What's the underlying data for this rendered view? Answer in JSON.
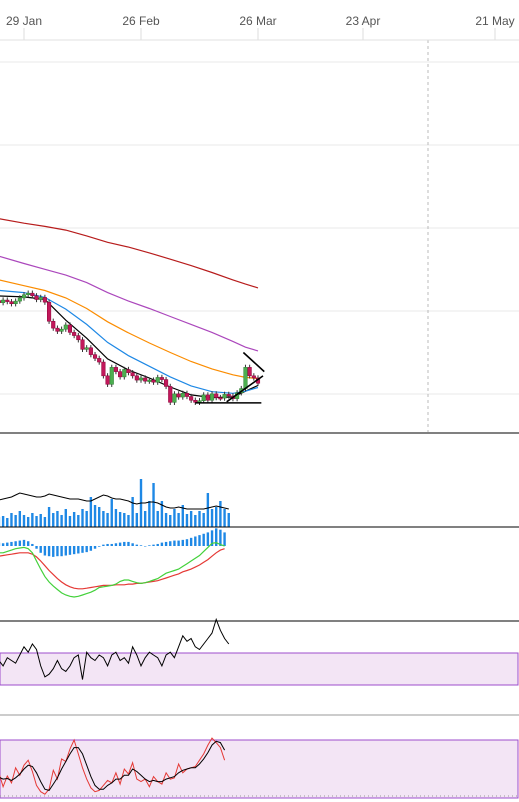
{
  "colors": {
    "up": "#4caf50",
    "down": "#c2185b",
    "ma_short": "#000000",
    "ma_blue": "#1e88e5",
    "ma_orange": "#fb8c00",
    "ma_purple": "#ab47bc",
    "ma_dark_red": "#b71c1c",
    "volume": "#1e88e5",
    "macd_signal": "#e53935",
    "macd_line": "#43d13b",
    "band_fill": "#f3e5f5",
    "band_border": "#9c4dcc",
    "grid": "#e8e8e8"
  },
  "chart_data": {
    "type": "candlestick",
    "title": "",
    "x_axis": {
      "tick_labels": [
        "29 Jan",
        "26 Feb",
        "26 Mar",
        "23 Apr",
        "21 May"
      ],
      "tick_days": [
        0,
        28,
        56,
        84,
        112
      ]
    },
    "panels": [
      "price",
      "volume",
      "macd",
      "rsi",
      "stochastic"
    ],
    "price": {
      "candles": [
        {
          "day": -7,
          "o": 62.0,
          "c": 61.4
        },
        {
          "day": -6,
          "o": 61.4,
          "c": 61.0
        },
        {
          "day": -5,
          "o": 61.0,
          "c": 61.5
        },
        {
          "day": -4,
          "o": 61.5,
          "c": 61.2
        },
        {
          "day": -3,
          "o": 61.2,
          "c": 60.8
        },
        {
          "day": -2,
          "o": 60.8,
          "c": 61.3
        },
        {
          "day": -1,
          "o": 61.3,
          "c": 61.9
        },
        {
          "day": 0,
          "o": 61.9,
          "c": 62.5
        },
        {
          "day": 1,
          "o": 62.5,
          "c": 62.8
        },
        {
          "day": 2,
          "o": 62.8,
          "c": 62.3
        },
        {
          "day": 3,
          "o": 62.3,
          "c": 61.6
        },
        {
          "day": 4,
          "o": 61.6,
          "c": 62.0
        },
        {
          "day": 5,
          "o": 62.0,
          "c": 61.1
        },
        {
          "day": 6,
          "o": 61.1,
          "c": 57.5
        },
        {
          "day": 7,
          "o": 57.5,
          "c": 56.2
        },
        {
          "day": 8,
          "o": 56.2,
          "c": 55.6
        },
        {
          "day": 9,
          "o": 55.6,
          "c": 56.0
        },
        {
          "day": 10,
          "o": 56.0,
          "c": 56.8
        },
        {
          "day": 11,
          "o": 56.8,
          "c": 55.4
        },
        {
          "day": 12,
          "o": 55.4,
          "c": 54.8
        },
        {
          "day": 13,
          "o": 54.8,
          "c": 54.0
        },
        {
          "day": 14,
          "o": 54.0,
          "c": 52.2
        },
        {
          "day": 15,
          "o": 52.2,
          "c": 52.5
        },
        {
          "day": 16,
          "o": 52.5,
          "c": 51.2
        },
        {
          "day": 17,
          "o": 51.2,
          "c": 50.5
        },
        {
          "day": 18,
          "o": 50.5,
          "c": 49.8
        },
        {
          "day": 19,
          "o": 49.8,
          "c": 47.2
        },
        {
          "day": 20,
          "o": 47.2,
          "c": 45.6
        },
        {
          "day": 21,
          "o": 45.6,
          "c": 48.8
        },
        {
          "day": 22,
          "o": 48.8,
          "c": 48.0
        },
        {
          "day": 23,
          "o": 48.0,
          "c": 47.0
        },
        {
          "day": 24,
          "o": 47.0,
          "c": 48.4
        },
        {
          "day": 25,
          "o": 48.4,
          "c": 47.8
        },
        {
          "day": 26,
          "o": 47.8,
          "c": 47.2
        },
        {
          "day": 27,
          "o": 47.2,
          "c": 46.4
        },
        {
          "day": 28,
          "o": 46.4,
          "c": 46.8
        },
        {
          "day": 29,
          "o": 46.8,
          "c": 46.2
        },
        {
          "day": 30,
          "o": 46.2,
          "c": 46.4
        },
        {
          "day": 31,
          "o": 46.4,
          "c": 46.0
        },
        {
          "day": 32,
          "o": 46.0,
          "c": 46.9
        },
        {
          "day": 33,
          "o": 46.9,
          "c": 46.5
        },
        {
          "day": 34,
          "o": 46.5,
          "c": 45.2
        },
        {
          "day": 35,
          "o": 45.2,
          "c": 42.2
        },
        {
          "day": 36,
          "o": 42.2,
          "c": 43.8
        },
        {
          "day": 37,
          "o": 43.8,
          "c": 43.2
        },
        {
          "day": 38,
          "o": 43.2,
          "c": 43.9
        },
        {
          "day": 39,
          "o": 43.9,
          "c": 43.3
        },
        {
          "day": 40,
          "o": 43.3,
          "c": 42.6
        },
        {
          "day": 41,
          "o": 42.6,
          "c": 42.2
        },
        {
          "day": 42,
          "o": 42.2,
          "c": 42.5
        },
        {
          "day": 43,
          "o": 42.5,
          "c": 43.6
        },
        {
          "day": 44,
          "o": 43.6,
          "c": 42.6
        },
        {
          "day": 45,
          "o": 42.6,
          "c": 43.8
        },
        {
          "day": 46,
          "o": 43.8,
          "c": 43.1
        },
        {
          "day": 47,
          "o": 43.1,
          "c": 43.0
        },
        {
          "day": 48,
          "o": 43.0,
          "c": 43.7
        },
        {
          "day": 49,
          "o": 43.7,
          "c": 43.4
        },
        {
          "day": 50,
          "o": 43.4,
          "c": 42.9
        },
        {
          "day": 51,
          "o": 42.9,
          "c": 44.0
        },
        {
          "day": 52,
          "o": 44.0,
          "c": 44.8
        },
        {
          "day": 53,
          "o": 44.8,
          "c": 48.8
        },
        {
          "day": 54,
          "o": 48.8,
          "c": 47.2
        },
        {
          "day": 55,
          "o": 47.2,
          "c": 46.8
        },
        {
          "day": 56,
          "o": 46.8,
          "c": 45.8
        }
      ],
      "moving_averages": [
        {
          "color_key": "ma_short",
          "values": [
            [
              -7,
              62.3
            ],
            [
              0,
              62.1
            ],
            [
              5,
              61.6
            ],
            [
              10,
              57.7
            ],
            [
              15,
              54.3
            ],
            [
              20,
              50.4
            ],
            [
              25,
              48.3
            ],
            [
              30,
              46.8
            ],
            [
              35,
              45.1
            ],
            [
              40,
              43.6
            ],
            [
              45,
              43.1
            ],
            [
              50,
              43.2
            ],
            [
              53,
              44.3
            ],
            [
              56,
              45.4
            ]
          ]
        },
        {
          "color_key": "ma_blue",
          "values": [
            [
              -7,
              63.4
            ],
            [
              0,
              62.9
            ],
            [
              5,
              62.0
            ],
            [
              10,
              59.8
            ],
            [
              15,
              56.9
            ],
            [
              20,
              53.5
            ],
            [
              25,
              51.0
            ],
            [
              30,
              49.0
            ],
            [
              35,
              47.0
            ],
            [
              40,
              45.3
            ],
            [
              45,
              44.2
            ],
            [
              50,
              43.9
            ],
            [
              53,
              44.3
            ],
            [
              56,
              45.0
            ]
          ]
        },
        {
          "color_key": "ma_orange",
          "values": [
            [
              -7,
              65.5
            ],
            [
              0,
              64.2
            ],
            [
              5,
              63.3
            ],
            [
              10,
              61.9
            ],
            [
              15,
              59.9
            ],
            [
              20,
              57.4
            ],
            [
              25,
              55.3
            ],
            [
              30,
              53.4
            ],
            [
              35,
              51.6
            ],
            [
              40,
              49.9
            ],
            [
              45,
              48.5
            ],
            [
              50,
              47.4
            ],
            [
              53,
              46.9
            ],
            [
              56,
              46.7
            ]
          ]
        },
        {
          "color_key": "ma_purple",
          "values": [
            [
              -7,
              70.0
            ],
            [
              0,
              68.4
            ],
            [
              5,
              67.3
            ],
            [
              10,
              66.2
            ],
            [
              15,
              64.8
            ],
            [
              20,
              62.9
            ],
            [
              25,
              61.3
            ],
            [
              30,
              59.9
            ],
            [
              35,
              58.4
            ],
            [
              40,
              56.9
            ],
            [
              45,
              55.4
            ],
            [
              50,
              53.7
            ],
            [
              53,
              52.6
            ],
            [
              56,
              51.9
            ]
          ]
        },
        {
          "color_key": "ma_dark_red",
          "values": [
            [
              -7,
              77.0
            ],
            [
              0,
              76.0
            ],
            [
              5,
              75.4
            ],
            [
              10,
              74.7
            ],
            [
              15,
              73.6
            ],
            [
              20,
              72.4
            ],
            [
              25,
              71.5
            ],
            [
              30,
              70.4
            ],
            [
              35,
              69.2
            ],
            [
              40,
              68.0
            ],
            [
              45,
              66.7
            ],
            [
              50,
              65.3
            ],
            [
              53,
              64.5
            ],
            [
              56,
              63.8
            ]
          ]
        }
      ],
      "trendlines": [
        {
          "from": [
            41,
            42.1
          ],
          "to": [
            56.8,
            42.1
          ]
        },
        {
          "from": [
            48.5,
            42.3
          ],
          "to": [
            57.2,
            47.2
          ]
        },
        {
          "from": [
            52.5,
            51.6
          ],
          "to": [
            57.5,
            48.0
          ]
        }
      ]
    },
    "volume": {
      "values": [
        12,
        10,
        11,
        9,
        14,
        12,
        16,
        12,
        10,
        14,
        11,
        13,
        10,
        20,
        14,
        16,
        12,
        18,
        11,
        15,
        12,
        18,
        16,
        30,
        22,
        20,
        16,
        14,
        28,
        18,
        15,
        14,
        12,
        30,
        14,
        48,
        16,
        26,
        44,
        16,
        26,
        14,
        12,
        18,
        14,
        22,
        13,
        16,
        12,
        16,
        14,
        34,
        18,
        20,
        26,
        18,
        14
      ],
      "average_line": [
        26,
        27,
        28,
        29,
        30,
        32,
        34,
        33,
        32,
        31,
        30,
        30,
        31,
        33,
        32,
        31,
        30,
        29,
        28,
        28,
        28,
        27,
        26,
        26,
        28,
        30,
        32,
        31,
        29,
        28,
        28,
        27,
        26,
        24,
        23,
        24,
        24,
        25,
        25,
        24,
        22,
        20,
        19,
        19,
        20,
        19,
        18,
        18,
        18,
        18,
        18,
        19,
        20,
        21,
        20,
        19,
        18
      ]
    },
    "macd": {
      "histogram": [
        0.6,
        0.5,
        0.4,
        0.5,
        0.6,
        0.7,
        0.8,
        0.9,
        0.7,
        0.3,
        -0.4,
        -1.0,
        -1.4,
        -1.5,
        -1.6,
        -1.5,
        -1.5,
        -1.4,
        -1.3,
        -1.2,
        -1.1,
        -1.0,
        -0.9,
        -0.7,
        -0.4,
        -0.1,
        0.2,
        0.3,
        0.3,
        0.4,
        0.5,
        0.6,
        0.6,
        0.4,
        0.2,
        0.1,
        0.0,
        0.1,
        0.2,
        0.3,
        0.5,
        0.6,
        0.7,
        0.8,
        0.8,
        0.9,
        1.0,
        1.2,
        1.4,
        1.6,
        1.8,
        2.0,
        2.3,
        2.6,
        2.4,
        2.0
      ],
      "signal": [
        -1.6,
        -1.5,
        -1.4,
        -1.3,
        -1.2,
        -1.1,
        -1.0,
        -1.0,
        -1.0,
        -1.2,
        -1.6,
        -2.2,
        -2.9,
        -3.6,
        -4.2,
        -4.8,
        -5.3,
        -5.7,
        -6.0,
        -6.2,
        -6.3,
        -6.3,
        -6.2,
        -6.1,
        -6.0,
        -5.9,
        -5.8,
        -5.8,
        -5.8,
        -5.7,
        -5.7,
        -5.7,
        -5.6,
        -5.6,
        -5.5,
        -5.5,
        -5.4,
        -5.3,
        -5.2,
        -5.1,
        -4.9,
        -4.7,
        -4.5,
        -4.3,
        -4.1,
        -3.8,
        -3.6,
        -3.4,
        -3.1,
        -2.8,
        -2.4,
        -2.0,
        -1.5,
        -1.0,
        -0.6,
        -0.4
      ],
      "macd_line": [
        -1.0,
        -1.0,
        -1.0,
        -0.8,
        -0.6,
        -0.4,
        -0.3,
        -0.2,
        -0.4,
        -1.0,
        -2.2,
        -3.4,
        -4.5,
        -5.3,
        -5.9,
        -6.4,
        -6.9,
        -7.2,
        -7.4,
        -7.5,
        -7.4,
        -7.2,
        -7.0,
        -6.8,
        -6.5,
        -6.1,
        -6.0,
        -5.9,
        -5.8,
        -5.6,
        -5.2,
        -5.0,
        -5.0,
        -5.2,
        -5.4,
        -5.5,
        -5.4,
        -5.2,
        -5.0,
        -4.8,
        -4.4,
        -4.0,
        -3.8,
        -3.6,
        -3.4,
        -3.0,
        -2.6,
        -2.2,
        -1.8,
        -1.4,
        -0.8,
        -0.2,
        0.4,
        0.5,
        0.2,
        0.0
      ]
    },
    "rsi": {
      "values": [
        40,
        42,
        38,
        44,
        42,
        40,
        46,
        52,
        48,
        54,
        50,
        38,
        30,
        32,
        36,
        42,
        36,
        34,
        38,
        44,
        46,
        28,
        48,
        44,
        42,
        46,
        44,
        38,
        46,
        48,
        42,
        44,
        40,
        52,
        46,
        38,
        44,
        48,
        46,
        44,
        38,
        46,
        48,
        44,
        52,
        60,
        56,
        58,
        52,
        50,
        54,
        58,
        62,
        72,
        64,
        58,
        54
      ]
    },
    "stochastic": {
      "k": [
        30,
        40,
        18,
        35,
        24,
        48,
        36,
        52,
        60,
        42,
        20,
        10,
        6,
        14,
        44,
        30,
        62,
        58,
        78,
        92,
        70,
        48,
        30,
        16,
        10,
        12,
        20,
        28,
        24,
        40,
        22,
        46,
        38,
        56,
        30,
        26,
        30,
        18,
        34,
        26,
        22,
        40,
        30,
        32,
        54,
        40,
        46,
        48,
        50,
        60,
        70,
        84,
        95,
        88,
        80,
        60
      ],
      "d": [
        34,
        33,
        30,
        31,
        28,
        32,
        38,
        46,
        52,
        50,
        40,
        26,
        14,
        12,
        22,
        32,
        46,
        58,
        70,
        80,
        80,
        70,
        52,
        34,
        20,
        14,
        14,
        20,
        24,
        30,
        30,
        36,
        36,
        46,
        42,
        36,
        30,
        26,
        28,
        26,
        26,
        30,
        32,
        34,
        40,
        44,
        46,
        48,
        48,
        54,
        62,
        72,
        84,
        90,
        88,
        76
      ],
      "overbought": 80,
      "oversold": 20
    }
  }
}
